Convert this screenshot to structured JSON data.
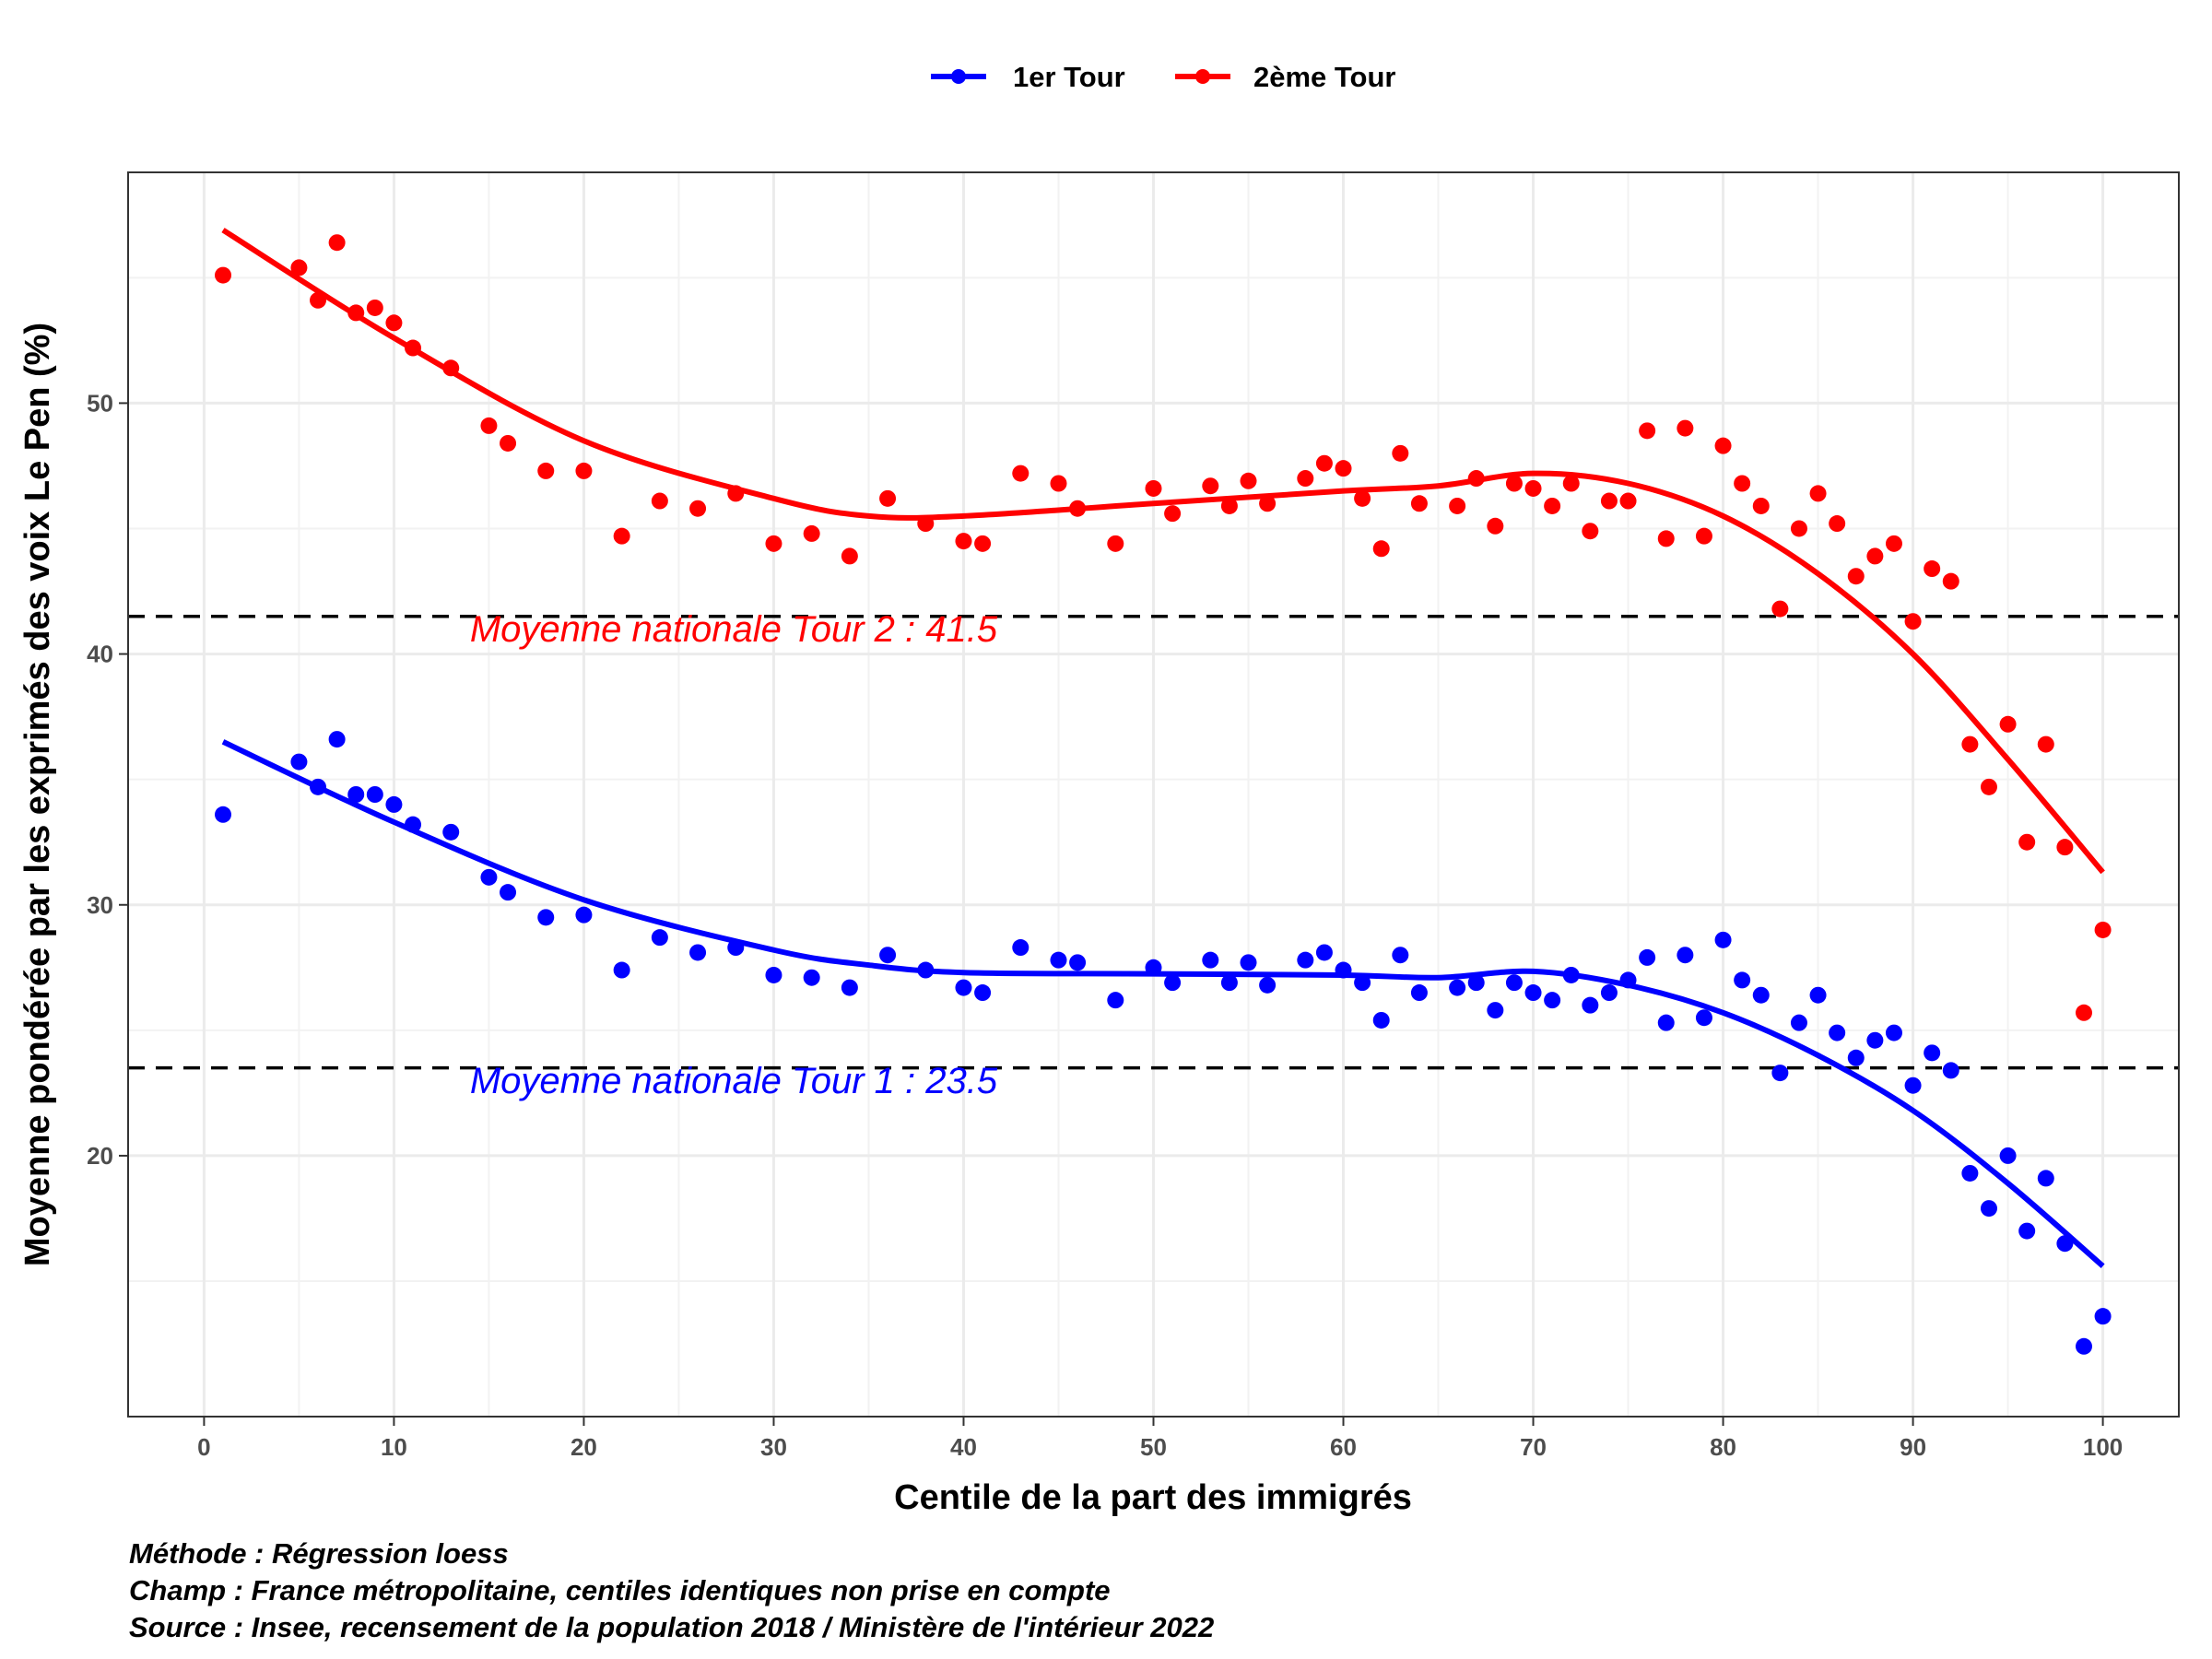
{
  "chart_data": {
    "type": "scatter",
    "xlabel": "Centile de la part des immigrés",
    "ylabel": "Moyenne pondérée par les exprimés des voix Le Pen (%)",
    "xlim": [
      -4,
      104
    ],
    "ylim": [
      9.6,
      59.2
    ],
    "x_ticks": [
      0,
      10,
      20,
      30,
      40,
      50,
      60,
      70,
      80,
      90,
      100
    ],
    "y_ticks": [
      20,
      30,
      40,
      50
    ],
    "grid": true,
    "legend_position": "top",
    "reference_lines": [
      {
        "y": 41.5,
        "label": "Moyenne nationale Tour 2 : 41.5",
        "color": "#ff0000",
        "label_x": 14,
        "label_y": 40.5
      },
      {
        "y": 23.5,
        "label": "Moyenne nationale Tour 1 : 23.5",
        "color": "#0000ff",
        "label_x": 14,
        "label_y": 22.5
      }
    ],
    "series": [
      {
        "name": "1er Tour",
        "color": "#0000ff",
        "points": [
          [
            1,
            33.6
          ],
          [
            5,
            35.7
          ],
          [
            6,
            34.7
          ],
          [
            7,
            36.6
          ],
          [
            8,
            34.4
          ],
          [
            9,
            34.4
          ],
          [
            10,
            34.0
          ],
          [
            11,
            33.2
          ],
          [
            13,
            32.9
          ],
          [
            15,
            31.1
          ],
          [
            16,
            30.5
          ],
          [
            18,
            29.5
          ],
          [
            20,
            29.6
          ],
          [
            22,
            27.4
          ],
          [
            24,
            28.7
          ],
          [
            26,
            28.1
          ],
          [
            28,
            28.3
          ],
          [
            30,
            27.2
          ],
          [
            32,
            27.1
          ],
          [
            34,
            26.7
          ],
          [
            36,
            28.0
          ],
          [
            38,
            27.4
          ],
          [
            40,
            26.7
          ],
          [
            41,
            26.5
          ],
          [
            43,
            28.3
          ],
          [
            45,
            27.8
          ],
          [
            46,
            27.7
          ],
          [
            48,
            26.2
          ],
          [
            50,
            27.5
          ],
          [
            51,
            26.9
          ],
          [
            53,
            27.8
          ],
          [
            54,
            26.9
          ],
          [
            55,
            27.7
          ],
          [
            56,
            26.8
          ],
          [
            58,
            27.8
          ],
          [
            59,
            28.1
          ],
          [
            60,
            27.4
          ],
          [
            61,
            26.9
          ],
          [
            62,
            25.4
          ],
          [
            63,
            28.0
          ],
          [
            64,
            26.5
          ],
          [
            66,
            26.7
          ],
          [
            67,
            26.9
          ],
          [
            68,
            25.8
          ],
          [
            69,
            26.9
          ],
          [
            70,
            26.5
          ],
          [
            71,
            26.2
          ],
          [
            72,
            27.2
          ],
          [
            73,
            26.0
          ],
          [
            74,
            26.5
          ],
          [
            75,
            27.0
          ],
          [
            76,
            27.9
          ],
          [
            77,
            25.3
          ],
          [
            78,
            28.0
          ],
          [
            79,
            25.5
          ],
          [
            80,
            28.6
          ],
          [
            81,
            27.0
          ],
          [
            82,
            26.4
          ],
          [
            83,
            23.3
          ],
          [
            84,
            25.3
          ],
          [
            85,
            26.4
          ],
          [
            86,
            24.9
          ],
          [
            87,
            23.9
          ],
          [
            88,
            24.6
          ],
          [
            89,
            24.9
          ],
          [
            90,
            22.8
          ],
          [
            91,
            24.1
          ],
          [
            92,
            23.4
          ],
          [
            93,
            19.3
          ],
          [
            94,
            17.9
          ],
          [
            95,
            20.0
          ],
          [
            96,
            17.0
          ],
          [
            97,
            19.1
          ],
          [
            98,
            16.5
          ],
          [
            99,
            12.4
          ],
          [
            100,
            13.6
          ]
        ],
        "smooth": [
          [
            1,
            36.5
          ],
          [
            10,
            33.3
          ],
          [
            20,
            30.2
          ],
          [
            30,
            28.2
          ],
          [
            35,
            27.6
          ],
          [
            40,
            27.3
          ],
          [
            50,
            27.25
          ],
          [
            60,
            27.2
          ],
          [
            65,
            27.1
          ],
          [
            70,
            27.35
          ],
          [
            75,
            26.8
          ],
          [
            80,
            25.7
          ],
          [
            85,
            24.0
          ],
          [
            90,
            21.8
          ],
          [
            95,
            18.9
          ],
          [
            100,
            15.6
          ]
        ]
      },
      {
        "name": "2ème Tour",
        "color": "#ff0000",
        "points": [
          [
            1,
            55.1
          ],
          [
            5,
            55.4
          ],
          [
            6,
            54.1
          ],
          [
            7,
            56.4
          ],
          [
            8,
            53.6
          ],
          [
            9,
            53.8
          ],
          [
            10,
            53.2
          ],
          [
            11,
            52.2
          ],
          [
            13,
            51.4
          ],
          [
            15,
            49.1
          ],
          [
            16,
            48.4
          ],
          [
            18,
            47.3
          ],
          [
            20,
            47.3
          ],
          [
            22,
            44.7
          ],
          [
            24,
            46.1
          ],
          [
            26,
            45.8
          ],
          [
            28,
            46.4
          ],
          [
            30,
            44.4
          ],
          [
            32,
            44.8
          ],
          [
            34,
            43.9
          ],
          [
            36,
            46.2
          ],
          [
            38,
            45.2
          ],
          [
            40,
            44.5
          ],
          [
            41,
            44.4
          ],
          [
            43,
            47.2
          ],
          [
            45,
            46.8
          ],
          [
            46,
            45.8
          ],
          [
            48,
            44.4
          ],
          [
            50,
            46.6
          ],
          [
            51,
            45.6
          ],
          [
            53,
            46.7
          ],
          [
            54,
            45.9
          ],
          [
            55,
            46.9
          ],
          [
            56,
            46.0
          ],
          [
            58,
            47.0
          ],
          [
            59,
            47.6
          ],
          [
            60,
            47.4
          ],
          [
            61,
            46.2
          ],
          [
            62,
            44.2
          ],
          [
            63,
            48.0
          ],
          [
            64,
            46.0
          ],
          [
            66,
            45.9
          ],
          [
            67,
            47.0
          ],
          [
            68,
            45.1
          ],
          [
            69,
            46.8
          ],
          [
            70,
            46.6
          ],
          [
            71,
            45.9
          ],
          [
            72,
            46.8
          ],
          [
            73,
            44.9
          ],
          [
            74,
            46.1
          ],
          [
            75,
            46.1
          ],
          [
            76,
            48.9
          ],
          [
            77,
            44.6
          ],
          [
            78,
            49.0
          ],
          [
            79,
            44.7
          ],
          [
            80,
            48.3
          ],
          [
            81,
            46.8
          ],
          [
            82,
            45.9
          ],
          [
            83,
            41.8
          ],
          [
            84,
            45.0
          ],
          [
            85,
            46.4
          ],
          [
            86,
            45.2
          ],
          [
            87,
            43.1
          ],
          [
            88,
            43.9
          ],
          [
            89,
            44.4
          ],
          [
            90,
            41.3
          ],
          [
            91,
            43.4
          ],
          [
            92,
            42.9
          ],
          [
            93,
            36.4
          ],
          [
            94,
            34.7
          ],
          [
            95,
            37.2
          ],
          [
            96,
            32.5
          ],
          [
            97,
            36.4
          ],
          [
            98,
            32.3
          ],
          [
            99,
            25.7
          ],
          [
            100,
            29.0
          ]
        ],
        "smooth": [
          [
            1,
            56.9
          ],
          [
            10,
            52.6
          ],
          [
            20,
            48.5
          ],
          [
            30,
            46.2
          ],
          [
            35,
            45.5
          ],
          [
            40,
            45.5
          ],
          [
            50,
            46.0
          ],
          [
            60,
            46.5
          ],
          [
            65,
            46.7
          ],
          [
            70,
            47.2
          ],
          [
            75,
            46.8
          ],
          [
            80,
            45.5
          ],
          [
            85,
            43.2
          ],
          [
            90,
            40.0
          ],
          [
            95,
            35.8
          ],
          [
            100,
            31.3
          ]
        ]
      }
    ]
  },
  "caption": {
    "line1": "Méthode : Régression loess",
    "line2": "Champ : France métropolitaine, centiles identiques non prise en compte",
    "line3": "Source : Insee, recensement de la population 2018 / Ministère de l'intérieur 2022"
  }
}
